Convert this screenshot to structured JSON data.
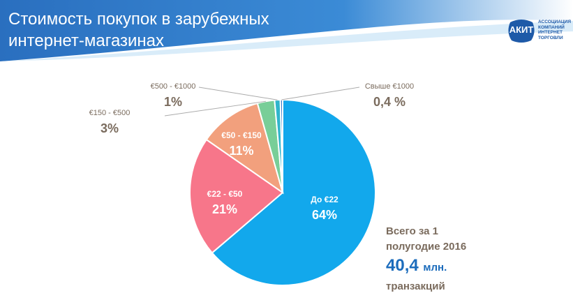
{
  "header": {
    "title_line1": "Стоимость покупок в зарубежных",
    "title_line2": "интернет-магазинах",
    "bg_color": "#2a6fbf"
  },
  "logo": {
    "badge": "АКИТ",
    "sub_line1": "АССОЦИАЦИЯ",
    "sub_line2": "КОМПАНИЙ",
    "sub_line3": "ИНТЕРНЕТ",
    "sub_line4": "ТОРГОВЛИ"
  },
  "chart_data": {
    "type": "pie",
    "title": "Стоимость покупок в зарубежных интернет-магазинах",
    "slices": [
      {
        "label": "До €22",
        "value": 64,
        "display": "64%",
        "color": "#12a8ec",
        "label_inside": true
      },
      {
        "label": "€22 - €50",
        "value": 21,
        "display": "21%",
        "color": "#f7768a",
        "label_inside": true
      },
      {
        "label": "€50 - €150",
        "value": 11,
        "display": "11%",
        "color": "#f2a07d",
        "label_inside": true
      },
      {
        "label": "€150 - €500",
        "value": 3,
        "display": "3%",
        "color": "#78ce98",
        "label_inside": false
      },
      {
        "label": "€500 - €1000",
        "value": 1,
        "display": "1%",
        "color": "#2fb5cc",
        "label_inside": false
      },
      {
        "label": "Свыше €1000",
        "value": 0.4,
        "display": "0,4 %",
        "color": "#3a7bc8",
        "label_inside": false
      }
    ]
  },
  "summary": {
    "line1": "Всего за 1",
    "line2": "полугодие 2016",
    "amount": "40,4",
    "unit": "млн.",
    "line4": "транзакций"
  }
}
